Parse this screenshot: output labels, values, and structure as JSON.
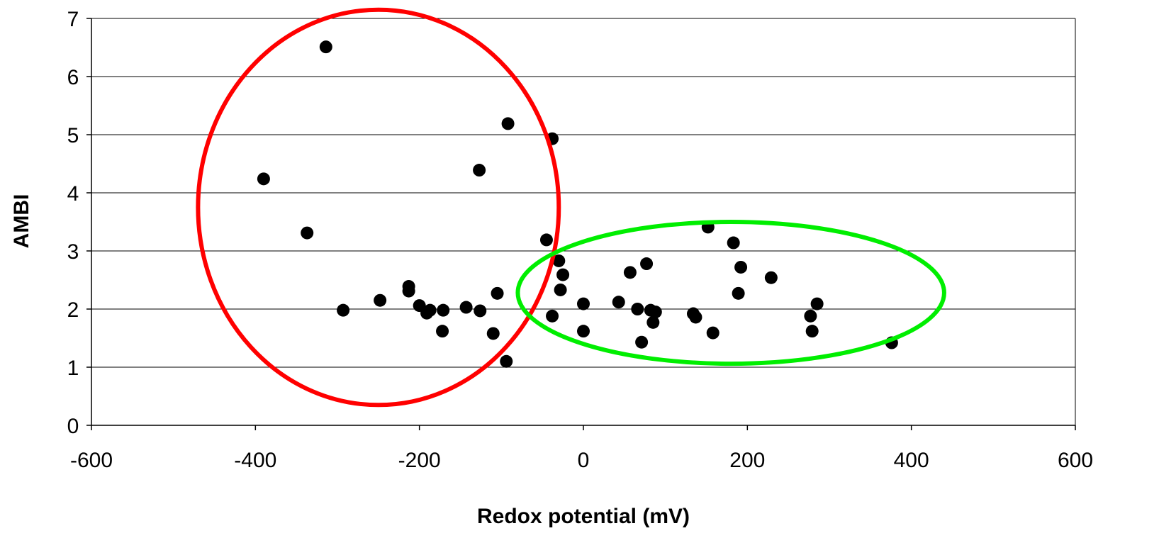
{
  "chart_data": {
    "type": "scatter",
    "title": "",
    "xlabel": "Redox potential (mV)",
    "ylabel": "AMBI",
    "xlim": [
      -600,
      600
    ],
    "ylim": [
      0,
      7
    ],
    "x_ticks": [
      -600,
      -400,
      -200,
      0,
      200,
      400,
      600
    ],
    "y_ticks": [
      0,
      1,
      2,
      3,
      4,
      5,
      6,
      7
    ],
    "x_tick_labels": [
      "-600",
      "-400",
      "-200",
      "0",
      "200",
      "400",
      "600"
    ],
    "y_tick_labels": [
      "0",
      "1",
      "2",
      "3",
      "4",
      "5",
      "6",
      "7"
    ],
    "grid": "horizontal",
    "legend": "none",
    "marker_color": "#000000",
    "series": [
      {
        "points": [
          [
            -390,
            4.24
          ],
          [
            -337,
            3.31
          ],
          [
            -314,
            6.51
          ],
          [
            -293,
            1.98
          ],
          [
            -248,
            2.15
          ],
          [
            -213,
            2.39
          ],
          [
            -213,
            2.31
          ],
          [
            -200,
            2.06
          ],
          [
            -191,
            1.93
          ],
          [
            -187,
            1.98
          ],
          [
            -172,
            1.62
          ],
          [
            -171,
            1.98
          ],
          [
            -143,
            2.03
          ],
          [
            -127,
            4.39
          ],
          [
            -126,
            1.97
          ],
          [
            -110,
            1.58
          ],
          [
            -105,
            2.27
          ],
          [
            -94,
            1.1
          ],
          [
            -92,
            5.19
          ],
          [
            -45,
            3.19
          ],
          [
            -38,
            4.93
          ],
          [
            -38,
            1.88
          ],
          [
            -30,
            2.83
          ],
          [
            -28,
            2.33
          ],
          [
            -25,
            2.59
          ],
          [
            0,
            2.09
          ],
          [
            0,
            1.62
          ],
          [
            43,
            2.12
          ],
          [
            57,
            2.63
          ],
          [
            66,
            2.0
          ],
          [
            71,
            1.43
          ],
          [
            77,
            2.78
          ],
          [
            82,
            1.98
          ],
          [
            85,
            1.77
          ],
          [
            88,
            1.95
          ],
          [
            134,
            1.92
          ],
          [
            137,
            1.86
          ],
          [
            152,
            3.41
          ],
          [
            158,
            1.59
          ],
          [
            183,
            3.14
          ],
          [
            189,
            2.27
          ],
          [
            192,
            2.72
          ],
          [
            229,
            2.54
          ],
          [
            277,
            1.88
          ],
          [
            279,
            1.62
          ],
          [
            285,
            2.09
          ],
          [
            376,
            1.42
          ]
        ]
      }
    ],
    "annotations": [
      {
        "shape": "ellipse",
        "color": "#ff0000",
        "cx": -250,
        "cy": 3.75,
        "rx": 220,
        "ry": 3.4
      },
      {
        "shape": "ellipse",
        "color": "#00ee00",
        "cx": 180,
        "cy": 2.28,
        "rx": 260,
        "ry": 1.22
      }
    ]
  }
}
